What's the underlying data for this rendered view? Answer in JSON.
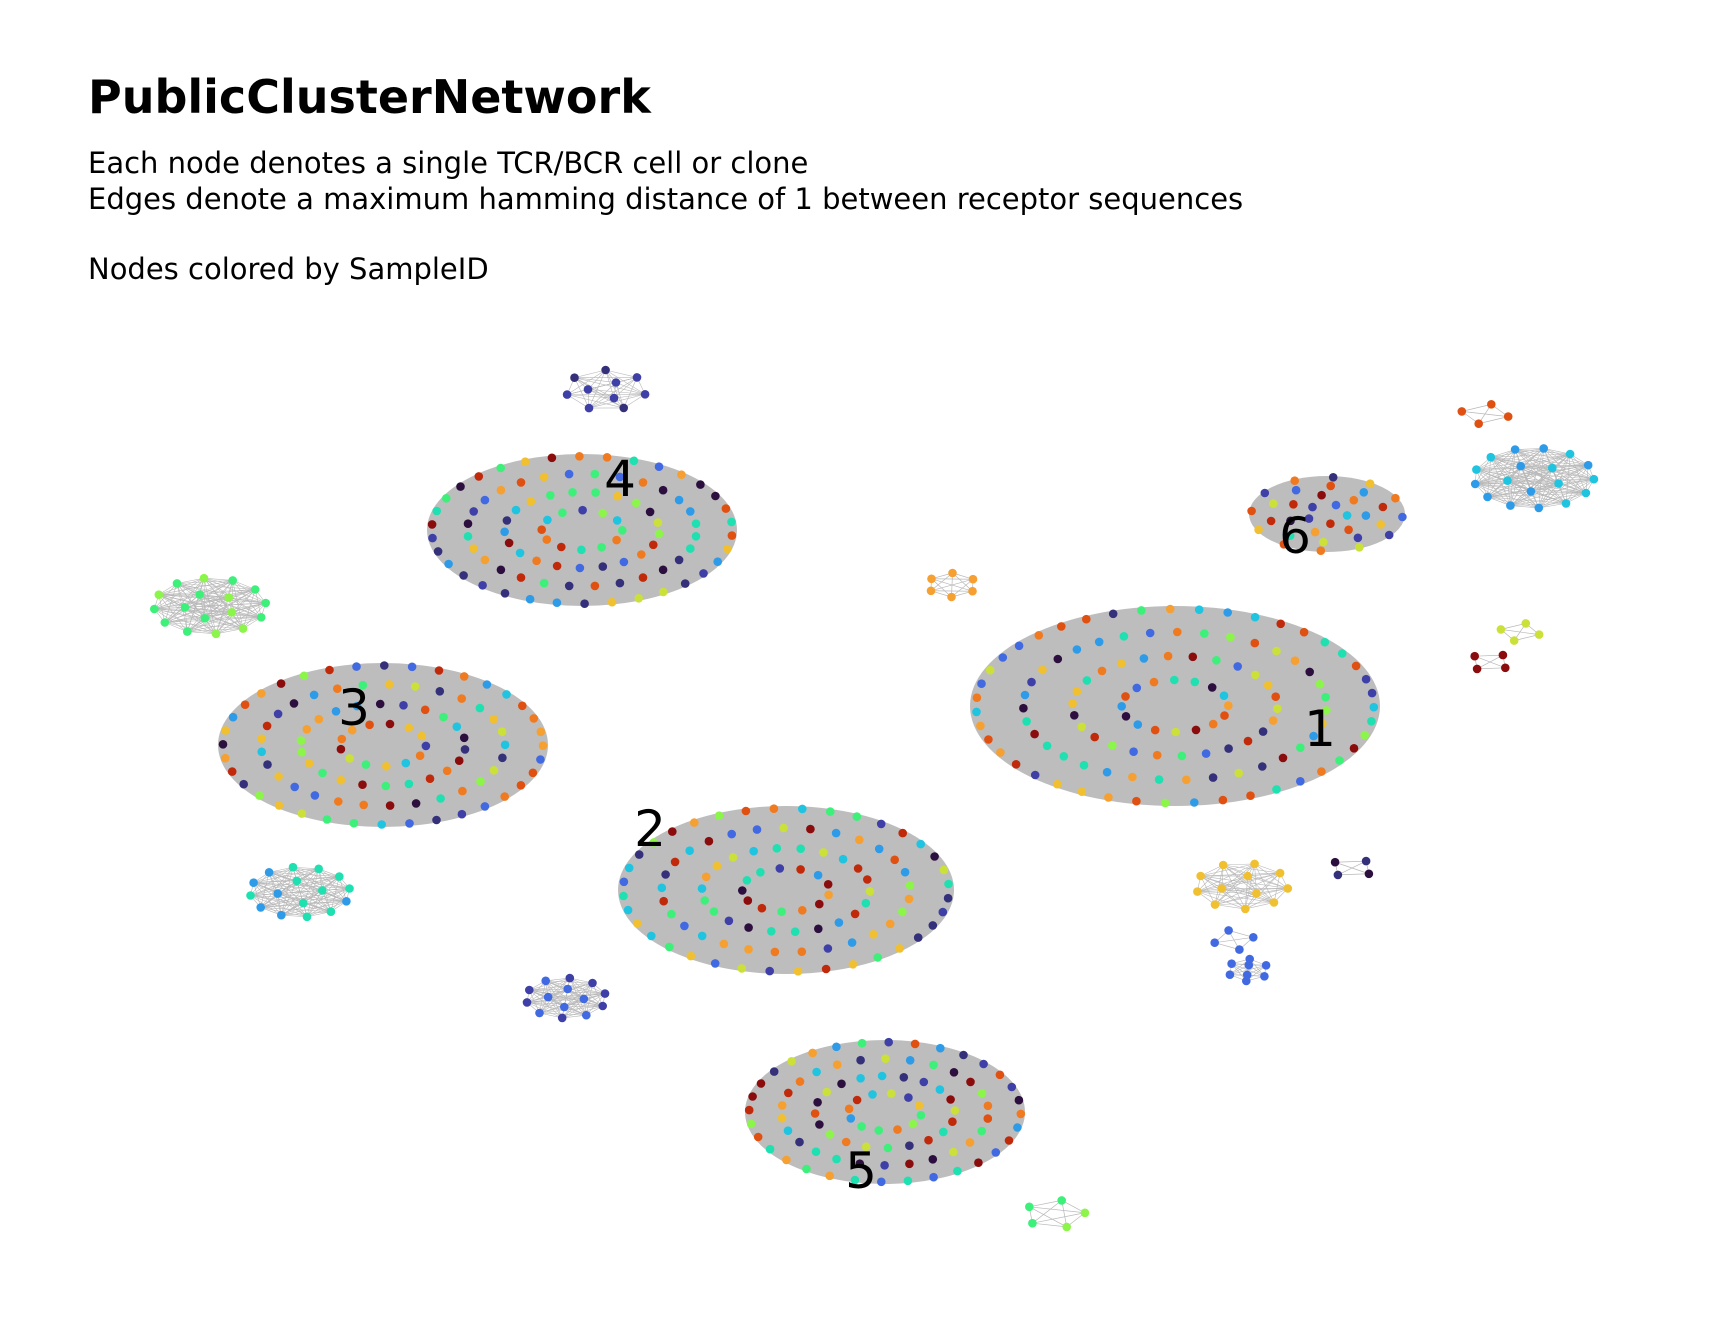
{
  "title": "PublicClusterNetwork",
  "subtitle_lines": [
    "Each node denotes a single TCR/BCR cell or clone",
    "Edges denote a maximum hamming distance of 1 between receptor sequences",
    "Nodes colored by SampleID"
  ],
  "colors": {
    "edge": "#b8b8b8",
    "background": "#ffffff",
    "palette": [
      "#2d0f3f",
      "#35307a",
      "#3f3fa8",
      "#4169e1",
      "#2e9be8",
      "#1fc4e0",
      "#1fe0b0",
      "#3cf07a",
      "#8cf54a",
      "#cce03a",
      "#f0c030",
      "#f5a030",
      "#f07a20",
      "#e05010",
      "#c02a0a",
      "#8b0c0c"
    ]
  },
  "clusters": [
    {
      "label": "1",
      "n_nodes": 120
    },
    {
      "label": "2",
      "n_nodes": 100
    },
    {
      "label": "3",
      "n_nodes": 100
    },
    {
      "label": "4",
      "n_nodes": 95
    },
    {
      "label": "5",
      "n_nodes": 90
    },
    {
      "label": "6",
      "n_nodes": 34
    },
    {
      "label": "",
      "n_nodes": 10
    },
    {
      "label": "",
      "n_nodes": 18
    },
    {
      "label": "",
      "n_nodes": 17
    },
    {
      "label": "",
      "n_nodes": 16
    },
    {
      "label": "",
      "n_nodes": 12
    },
    {
      "label": "",
      "n_nodes": 14
    },
    {
      "label": "",
      "n_nodes": 6
    },
    {
      "label": "",
      "n_nodes": 5
    },
    {
      "label": "",
      "n_nodes": 4
    },
    {
      "label": "",
      "n_nodes": 4
    },
    {
      "label": "",
      "n_nodes": 4
    },
    {
      "label": "",
      "n_nodes": 4
    },
    {
      "label": "",
      "n_nodes": 4
    },
    {
      "label": "",
      "n_nodes": 8
    }
  ]
}
